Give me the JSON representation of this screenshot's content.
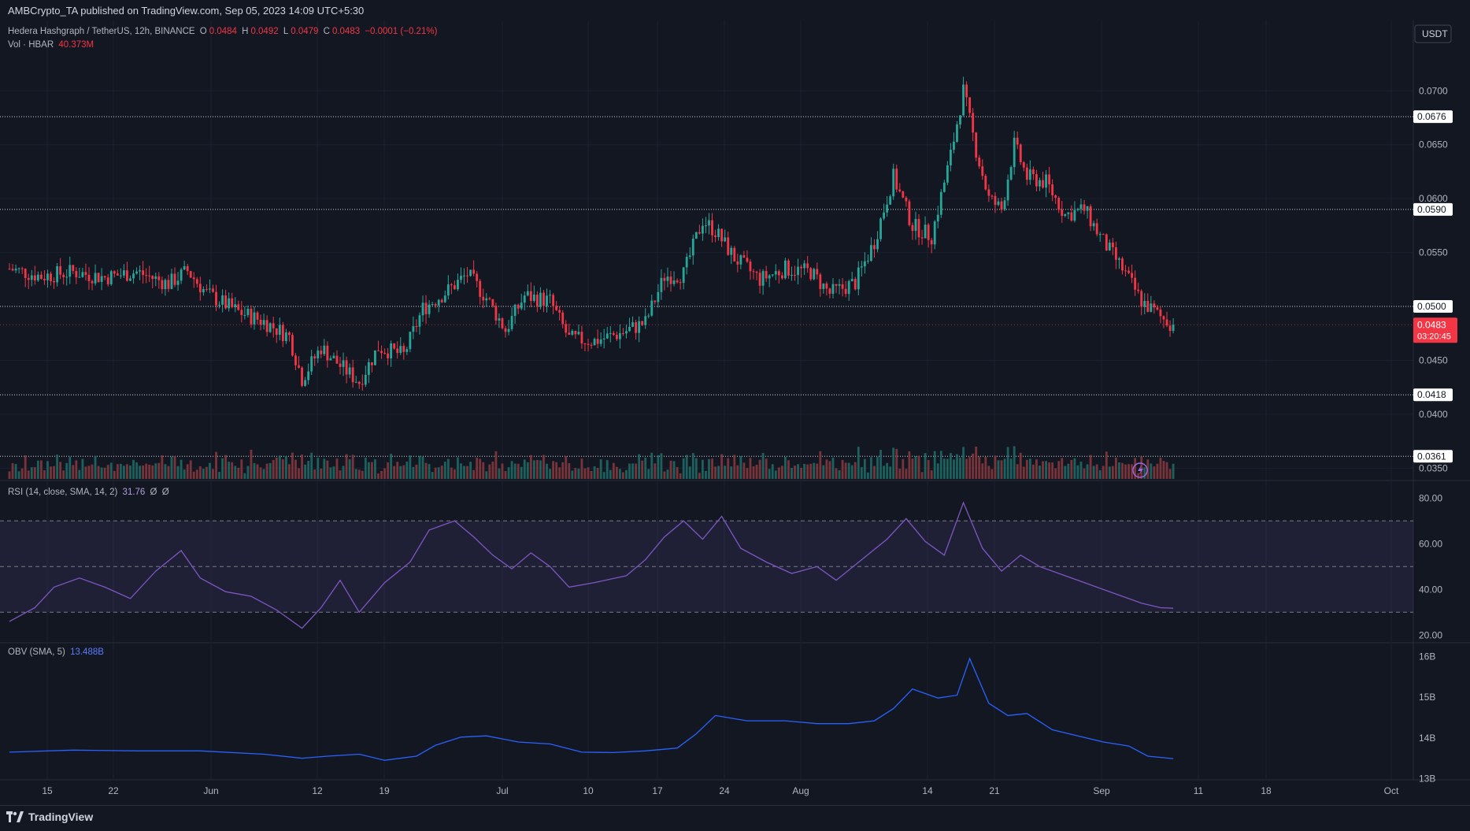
{
  "header": {
    "published": "AMBCrypto_TA published on TradingView.com, Sep 05, 2023 14:09 UTC+5:30"
  },
  "legend": {
    "symbol": "Hedera Hashgraph / TetherUS, 12h, BINANCE",
    "o_label": "O",
    "o_value": "0.0484",
    "h_label": "H",
    "h_value": "0.0492",
    "l_label": "L",
    "l_value": "0.0479",
    "c_label": "C",
    "c_value": "0.0483",
    "change": "−0.0001 (−0.21%)",
    "vol_label": "Vol · HBAR",
    "vol_value": "40.373M"
  },
  "rsi_legend": {
    "label": "RSI (14, close, SMA, 14, 2)",
    "value": "31.76",
    "extra1": "Ø",
    "extra2": "Ø"
  },
  "obv_legend": {
    "label": "OBV (SMA, 5)",
    "value": "13.488B"
  },
  "currency_button": "USDT",
  "current_price": {
    "value": "0.0483",
    "countdown": "03:20:45"
  },
  "footer": {
    "brand": "TradingView"
  },
  "colors": {
    "up": "#26a69a",
    "down": "#f23645",
    "rsi": "#7e57c2",
    "obv": "#2962ff",
    "bg": "#131722"
  },
  "chart_data": [
    {
      "type": "candlestick",
      "title": "Hedera Hashgraph / TetherUS, 12h, BINANCE",
      "ylim": [
        0.034,
        0.0755
      ],
      "y_ticks": [
        "0.0350",
        "0.0400",
        "0.0450",
        "0.0550",
        "0.0600",
        "0.0650",
        "0.0700"
      ],
      "horizontal_levels": [
        "0.0676",
        "0.0590",
        "0.0500",
        "0.0418",
        "0.0361"
      ],
      "x_ticks": [
        "15",
        "22",
        "Jun",
        "12",
        "19",
        "Jul",
        "10",
        "17",
        "24",
        "Aug",
        "14",
        "21",
        "Sep",
        "11",
        "18",
        "Oct"
      ],
      "last_close": 0.0483,
      "close_path": [
        {
          "x": 0,
          "y": 0.0535
        },
        {
          "x": 10,
          "y": 0.0528
        },
        {
          "x": 20,
          "y": 0.0532
        },
        {
          "x": 30,
          "y": 0.0527
        },
        {
          "x": 40,
          "y": 0.0532
        },
        {
          "x": 50,
          "y": 0.0521
        },
        {
          "x": 56,
          "y": 0.0533
        },
        {
          "x": 62,
          "y": 0.0512
        },
        {
          "x": 72,
          "y": 0.0495
        },
        {
          "x": 80,
          "y": 0.0486
        },
        {
          "x": 88,
          "y": 0.0472
        },
        {
          "x": 92,
          "y": 0.0433
        },
        {
          "x": 98,
          "y": 0.0462
        },
        {
          "x": 104,
          "y": 0.0445
        },
        {
          "x": 110,
          "y": 0.043
        },
        {
          "x": 116,
          "y": 0.0462
        },
        {
          "x": 124,
          "y": 0.0455
        },
        {
          "x": 130,
          "y": 0.0498
        },
        {
          "x": 138,
          "y": 0.0515
        },
        {
          "x": 144,
          "y": 0.053
        },
        {
          "x": 150,
          "y": 0.0508
        },
        {
          "x": 156,
          "y": 0.0478
        },
        {
          "x": 162,
          "y": 0.051
        },
        {
          "x": 170,
          "y": 0.0505
        },
        {
          "x": 176,
          "y": 0.047
        },
        {
          "x": 184,
          "y": 0.0468
        },
        {
          "x": 192,
          "y": 0.0475
        },
        {
          "x": 200,
          "y": 0.0485
        },
        {
          "x": 206,
          "y": 0.0528
        },
        {
          "x": 212,
          "y": 0.053
        },
        {
          "x": 218,
          "y": 0.058
        },
        {
          "x": 222,
          "y": 0.057
        },
        {
          "x": 228,
          "y": 0.0545
        },
        {
          "x": 236,
          "y": 0.0525
        },
        {
          "x": 244,
          "y": 0.0535
        },
        {
          "x": 252,
          "y": 0.0532
        },
        {
          "x": 258,
          "y": 0.0512
        },
        {
          "x": 266,
          "y": 0.0522
        },
        {
          "x": 272,
          "y": 0.056
        },
        {
          "x": 278,
          "y": 0.062
        },
        {
          "x": 284,
          "y": 0.0575
        },
        {
          "x": 290,
          "y": 0.0565
        },
        {
          "x": 296,
          "y": 0.064
        },
        {
          "x": 300,
          "y": 0.07
        },
        {
          "x": 304,
          "y": 0.0645
        },
        {
          "x": 308,
          "y": 0.06
        },
        {
          "x": 312,
          "y": 0.059
        },
        {
          "x": 316,
          "y": 0.065
        },
        {
          "x": 320,
          "y": 0.062
        },
        {
          "x": 326,
          "y": 0.0615
        },
        {
          "x": 332,
          "y": 0.0585
        },
        {
          "x": 338,
          "y": 0.059
        },
        {
          "x": 344,
          "y": 0.056
        },
        {
          "x": 350,
          "y": 0.0535
        },
        {
          "x": 356,
          "y": 0.0505
        },
        {
          "x": 362,
          "y": 0.049
        },
        {
          "x": 366,
          "y": 0.0483
        }
      ]
    },
    {
      "type": "bar",
      "title": "Vol · HBAR",
      "series": [
        {
          "name": "Vol · HBAR",
          "values": []
        }
      ]
    },
    {
      "type": "line",
      "title": "RSI (14, close, SMA, 14, 2)",
      "ylim": [
        20,
        80
      ],
      "y_ticks": [
        "20.00",
        "40.00",
        "60.00",
        "80.00"
      ],
      "bands": [
        30,
        50,
        70
      ],
      "points": [
        {
          "x": 0,
          "y": 26
        },
        {
          "x": 8,
          "y": 32
        },
        {
          "x": 14,
          "y": 41
        },
        {
          "x": 22,
          "y": 45
        },
        {
          "x": 30,
          "y": 41
        },
        {
          "x": 38,
          "y": 36
        },
        {
          "x": 46,
          "y": 48
        },
        {
          "x": 54,
          "y": 57
        },
        {
          "x": 60,
          "y": 45
        },
        {
          "x": 68,
          "y": 39
        },
        {
          "x": 76,
          "y": 37
        },
        {
          "x": 84,
          "y": 31
        },
        {
          "x": 92,
          "y": 23
        },
        {
          "x": 98,
          "y": 32
        },
        {
          "x": 104,
          "y": 44
        },
        {
          "x": 110,
          "y": 30
        },
        {
          "x": 118,
          "y": 43
        },
        {
          "x": 126,
          "y": 52
        },
        {
          "x": 132,
          "y": 66
        },
        {
          "x": 140,
          "y": 70
        },
        {
          "x": 146,
          "y": 63
        },
        {
          "x": 152,
          "y": 55
        },
        {
          "x": 158,
          "y": 49
        },
        {
          "x": 164,
          "y": 56
        },
        {
          "x": 170,
          "y": 50
        },
        {
          "x": 176,
          "y": 41
        },
        {
          "x": 184,
          "y": 43
        },
        {
          "x": 194,
          "y": 46
        },
        {
          "x": 200,
          "y": 53
        },
        {
          "x": 206,
          "y": 63
        },
        {
          "x": 212,
          "y": 70
        },
        {
          "x": 218,
          "y": 62
        },
        {
          "x": 224,
          "y": 72
        },
        {
          "x": 230,
          "y": 58
        },
        {
          "x": 238,
          "y": 52
        },
        {
          "x": 246,
          "y": 47
        },
        {
          "x": 254,
          "y": 50
        },
        {
          "x": 260,
          "y": 44
        },
        {
          "x": 268,
          "y": 53
        },
        {
          "x": 276,
          "y": 62
        },
        {
          "x": 282,
          "y": 71
        },
        {
          "x": 288,
          "y": 61
        },
        {
          "x": 294,
          "y": 55
        },
        {
          "x": 300,
          "y": 78
        },
        {
          "x": 306,
          "y": 58
        },
        {
          "x": 312,
          "y": 48
        },
        {
          "x": 318,
          "y": 55
        },
        {
          "x": 324,
          "y": 50
        },
        {
          "x": 332,
          "y": 46
        },
        {
          "x": 340,
          "y": 42
        },
        {
          "x": 348,
          "y": 38
        },
        {
          "x": 356,
          "y": 34
        },
        {
          "x": 362,
          "y": 32
        },
        {
          "x": 366,
          "y": 31.76
        }
      ]
    },
    {
      "type": "line",
      "title": "OBV (SMA, 5)",
      "ylim": [
        13,
        16
      ],
      "y_ticks": [
        "13B",
        "14B",
        "15B",
        "16B"
      ],
      "points": [
        {
          "x": 0,
          "y": 13.65
        },
        {
          "x": 20,
          "y": 13.7
        },
        {
          "x": 40,
          "y": 13.68
        },
        {
          "x": 60,
          "y": 13.68
        },
        {
          "x": 80,
          "y": 13.6
        },
        {
          "x": 92,
          "y": 13.5
        },
        {
          "x": 100,
          "y": 13.55
        },
        {
          "x": 110,
          "y": 13.6
        },
        {
          "x": 118,
          "y": 13.45
        },
        {
          "x": 128,
          "y": 13.55
        },
        {
          "x": 134,
          "y": 13.82
        },
        {
          "x": 142,
          "y": 14.02
        },
        {
          "x": 150,
          "y": 14.05
        },
        {
          "x": 160,
          "y": 13.9
        },
        {
          "x": 170,
          "y": 13.85
        },
        {
          "x": 180,
          "y": 13.65
        },
        {
          "x": 190,
          "y": 13.64
        },
        {
          "x": 200,
          "y": 13.68
        },
        {
          "x": 210,
          "y": 13.75
        },
        {
          "x": 216,
          "y": 14.1
        },
        {
          "x": 222,
          "y": 14.55
        },
        {
          "x": 232,
          "y": 14.42
        },
        {
          "x": 244,
          "y": 14.42
        },
        {
          "x": 254,
          "y": 14.35
        },
        {
          "x": 264,
          "y": 14.35
        },
        {
          "x": 272,
          "y": 14.42
        },
        {
          "x": 278,
          "y": 14.72
        },
        {
          "x": 284,
          "y": 15.2
        },
        {
          "x": 292,
          "y": 14.98
        },
        {
          "x": 298,
          "y": 15.05
        },
        {
          "x": 302,
          "y": 15.95
        },
        {
          "x": 308,
          "y": 14.85
        },
        {
          "x": 314,
          "y": 14.55
        },
        {
          "x": 320,
          "y": 14.6
        },
        {
          "x": 328,
          "y": 14.2
        },
        {
          "x": 336,
          "y": 14.05
        },
        {
          "x": 344,
          "y": 13.9
        },
        {
          "x": 352,
          "y": 13.8
        },
        {
          "x": 358,
          "y": 13.55
        },
        {
          "x": 366,
          "y": 13.49
        }
      ]
    }
  ]
}
